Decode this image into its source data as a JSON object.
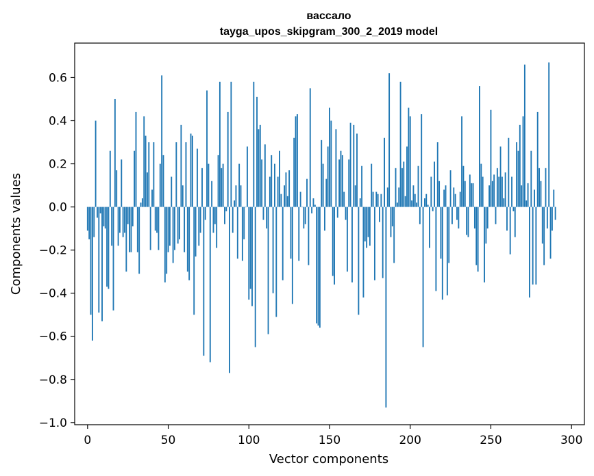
{
  "chart_data": {
    "type": "bar",
    "title": "вассало",
    "subtitle": "tayga_upos_skipgram_300_2_2019 model",
    "xlabel": "Vector components",
    "ylabel": "Components values",
    "xlim": [
      -8,
      308
    ],
    "ylim": [
      -1.01,
      0.76
    ],
    "xticks": [
      0,
      50,
      100,
      150,
      200,
      250,
      300
    ],
    "yticks": [
      -1.0,
      -0.8,
      -0.6,
      -0.4,
      -0.2,
      0.0,
      0.2,
      0.4,
      0.6
    ],
    "ytick_labels": [
      "−1.0",
      "−0.8",
      "−0.6",
      "−0.4",
      "−0.2",
      "0.0",
      "0.2",
      "0.4",
      "0.6"
    ],
    "bar_color": "#1f77b4",
    "grid": false,
    "values": [
      -0.11,
      -0.15,
      -0.5,
      -0.62,
      -0.14,
      0.4,
      -0.05,
      -0.49,
      -0.03,
      -0.53,
      -0.09,
      -0.1,
      -0.37,
      -0.38,
      0.26,
      -0.18,
      -0.48,
      0.5,
      0.17,
      -0.18,
      -0.12,
      0.22,
      -0.14,
      -0.12,
      -0.3,
      -0.08,
      -0.21,
      -0.21,
      -0.09,
      0.26,
      0.44,
      -0.21,
      -0.31,
      0.02,
      0.04,
      0.42,
      0.33,
      0.16,
      0.3,
      -0.2,
      0.08,
      0.3,
      -0.11,
      -0.12,
      -0.2,
      0.2,
      0.61,
      0.24,
      -0.35,
      -0.31,
      -0.21,
      -0.18,
      0.14,
      -0.26,
      -0.2,
      0.3,
      -0.17,
      -0.15,
      0.38,
      0.1,
      -0.21,
      0.3,
      -0.3,
      -0.34,
      0.34,
      0.33,
      -0.5,
      -0.23,
      0.27,
      -0.18,
      -0.12,
      0.18,
      -0.69,
      -0.06,
      0.54,
      0.2,
      -0.72,
      0.12,
      -0.12,
      -0.08,
      -0.19,
      0.24,
      0.58,
      0.18,
      0.2,
      -0.08,
      -0.02,
      0.44,
      -0.77,
      0.58,
      -0.12,
      0.03,
      0.1,
      -0.24,
      0.2,
      0.1,
      -0.25,
      -0.15,
      0.0,
      0.28,
      -0.43,
      -0.38,
      -0.46,
      0.58,
      -0.65,
      0.51,
      0.36,
      0.38,
      0.22,
      -0.06,
      0.29,
      -0.1,
      -0.59,
      0.14,
      0.24,
      -0.4,
      0.2,
      -0.51,
      0.14,
      0.26,
      0.06,
      -0.34,
      0.1,
      0.16,
      0.05,
      0.17,
      -0.24,
      -0.45,
      0.32,
      0.42,
      0.43,
      -0.25,
      0.07,
      0.0,
      -0.1,
      -0.08,
      0.13,
      -0.27,
      0.55,
      -0.03,
      0.04,
      0.01,
      -0.54,
      -0.55,
      -0.56,
      0.31,
      0.2,
      -0.11,
      0.13,
      0.28,
      0.46,
      0.4,
      -0.32,
      -0.36,
      0.36,
      -0.05,
      0.22,
      0.26,
      0.24,
      0.07,
      -0.06,
      -0.3,
      0.22,
      0.39,
      -0.35,
      0.38,
      0.1,
      0.34,
      -0.5,
      0.04,
      0.19,
      -0.42,
      -0.16,
      -0.19,
      -0.14,
      -0.18,
      0.2,
      0.07,
      -0.34,
      0.07,
      0.06,
      -0.07,
      0.06,
      -0.33,
      0.32,
      -0.93,
      0.09,
      0.62,
      -0.14,
      -0.09,
      -0.26,
      0.18,
      0.02,
      0.09,
      0.58,
      0.18,
      0.21,
      0.05,
      0.28,
      0.46,
      0.42,
      0.03,
      0.1,
      0.06,
      0.02,
      0.19,
      -0.08,
      0.43,
      -0.65,
      0.04,
      0.06,
      0.01,
      -0.19,
      0.14,
      -0.02,
      0.21,
      -0.39,
      0.3,
      0.12,
      -0.24,
      -0.43,
      0.08,
      0.1,
      -0.41,
      -0.26,
      0.17,
      -0.08,
      0.09,
      0.06,
      -0.06,
      -0.1,
      0.07,
      0.42,
      0.19,
      0.12,
      -0.13,
      -0.14,
      0.15,
      0.11,
      0.11,
      -0.1,
      -0.27,
      -0.3,
      0.56,
      0.2,
      0.14,
      -0.35,
      -0.17,
      -0.1,
      0.1,
      0.45,
      0.12,
      0.15,
      -0.08,
      0.18,
      0.14,
      0.28,
      0.14,
      0.04,
      0.16,
      -0.11,
      0.32,
      -0.22,
      0.14,
      -0.02,
      -0.14,
      0.3,
      0.26,
      0.38,
      0.1,
      0.42,
      0.66,
      0.03,
      0.11,
      -0.42,
      0.26,
      -0.36,
      0.08,
      -0.36,
      0.44,
      0.18,
      0.12,
      -0.17,
      -0.27,
      0.18,
      -0.1,
      0.67,
      -0.24,
      -0.11,
      0.08,
      -0.06
    ]
  }
}
